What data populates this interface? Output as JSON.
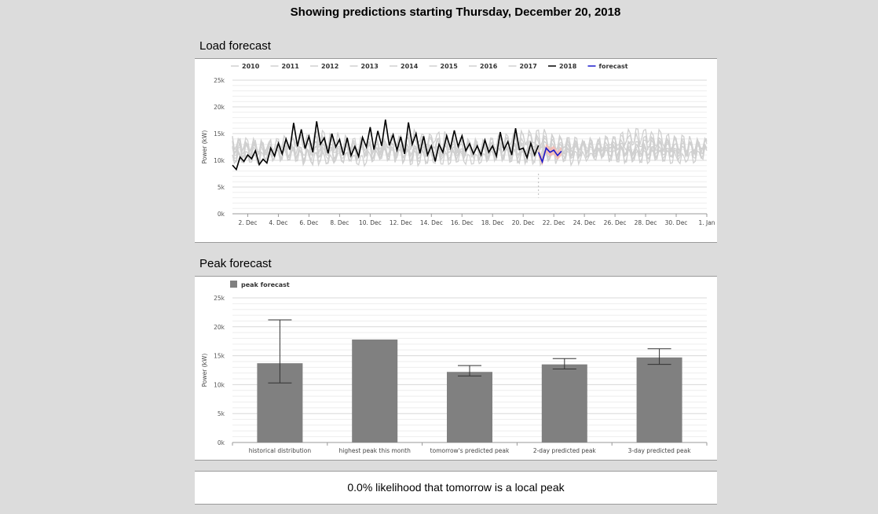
{
  "page": {
    "title": "Showing predictions starting Thursday, December 20, 2018",
    "likelihood_text": "0.0% likelihood that tomorrow is a local peak"
  },
  "load_section": {
    "title": "Load forecast"
  },
  "peak_section": {
    "title": "Peak forecast"
  },
  "chart_data": [
    {
      "type": "line",
      "ylabel": "Power (kW)",
      "xlabel": "",
      "ylim": [
        0,
        25000
      ],
      "yticks": [
        "0k",
        "5k",
        "10k",
        "15k",
        "20k",
        "25k"
      ],
      "xlim_days": [
        1,
        32
      ],
      "x_tick_labels": [
        "2. Dec",
        "4. Dec",
        "6. Dec",
        "8. Dec",
        "10. Dec",
        "12. Dec",
        "14. Dec",
        "16. Dec",
        "18. Dec",
        "20. Dec",
        "22. Dec",
        "24. Dec",
        "26. Dec",
        "28. Dec",
        "30. Dec",
        "1. Jan"
      ],
      "legend_position": "top",
      "grid": true,
      "colors": {
        "history": "#d0d0d0",
        "current": "#000000",
        "forecast": "#1a1acc",
        "band": "#f4b8b0"
      },
      "series": [
        {
          "name": "2010",
          "color": "#d0d0d0",
          "seed": 3,
          "base": 11000,
          "amp": 2200,
          "noise": 900,
          "trend": 400
        },
        {
          "name": "2011",
          "color": "#d0d0d0",
          "seed": 7,
          "base": 12000,
          "amp": 2600,
          "noise": 1000,
          "trend": 0
        },
        {
          "name": "2012",
          "color": "#d0d0d0",
          "seed": 11,
          "base": 12500,
          "amp": 2400,
          "noise": 1000,
          "trend": -300
        },
        {
          "name": "2013",
          "color": "#d0d0d0",
          "seed": 13,
          "base": 11500,
          "amp": 2800,
          "noise": 1100,
          "trend": 500
        },
        {
          "name": "2014",
          "color": "#d0d0d0",
          "seed": 17,
          "base": 13000,
          "amp": 2300,
          "noise": 900,
          "trend": 0
        },
        {
          "name": "2015",
          "color": "#d0d0d0",
          "seed": 19,
          "base": 11000,
          "amp": 2500,
          "noise": 1000,
          "trend": 800
        },
        {
          "name": "2016",
          "color": "#d0d0d0",
          "seed": 23,
          "base": 12500,
          "amp": 3200,
          "noise": 1300,
          "trend": 1000
        },
        {
          "name": "2017",
          "color": "#d0d0d0",
          "seed": 29,
          "base": 12000,
          "amp": 2700,
          "noise": 1000,
          "trend": 300
        },
        {
          "name": "2018",
          "color": "#000000",
          "points": [
            [
              1.0,
              9100
            ],
            [
              1.25,
              8300
            ],
            [
              1.5,
              10600
            ],
            [
              1.75,
              9800
            ],
            [
              2.0,
              11000
            ],
            [
              2.25,
              10300
            ],
            [
              2.5,
              11800
            ],
            [
              2.75,
              9200
            ],
            [
              3.0,
              10200
            ],
            [
              3.25,
              9500
            ],
            [
              3.5,
              12300
            ],
            [
              3.75,
              10800
            ],
            [
              4.0,
              13200
            ],
            [
              4.25,
              11200
            ],
            [
              4.5,
              14000
            ],
            [
              4.75,
              12000
            ],
            [
              5.0,
              17000
            ],
            [
              5.25,
              12600
            ],
            [
              5.5,
              15800
            ],
            [
              5.75,
              12200
            ],
            [
              6.0,
              14500
            ],
            [
              6.25,
              11500
            ],
            [
              6.5,
              17300
            ],
            [
              6.75,
              13000
            ],
            [
              7.0,
              14200
            ],
            [
              7.25,
              11300
            ],
            [
              7.5,
              15000
            ],
            [
              7.75,
              12500
            ],
            [
              8.0,
              13900
            ],
            [
              8.25,
              11000
            ],
            [
              8.5,
              14200
            ],
            [
              8.75,
              10900
            ],
            [
              9.0,
              12600
            ],
            [
              9.25,
              10700
            ],
            [
              9.5,
              14300
            ],
            [
              9.75,
              12500
            ],
            [
              10.0,
              16200
            ],
            [
              10.25,
              12000
            ],
            [
              10.5,
              15500
            ],
            [
              10.75,
              12700
            ],
            [
              11.0,
              17600
            ],
            [
              11.25,
              12800
            ],
            [
              11.5,
              14800
            ],
            [
              11.75,
              11900
            ],
            [
              12.0,
              14400
            ],
            [
              12.25,
              11200
            ],
            [
              12.5,
              17100
            ],
            [
              12.75,
              13000
            ],
            [
              13.0,
              15000
            ],
            [
              13.25,
              11300
            ],
            [
              13.5,
              14500
            ],
            [
              13.75,
              11000
            ],
            [
              14.0,
              12700
            ],
            [
              14.25,
              9800
            ],
            [
              14.5,
              13000
            ],
            [
              14.75,
              11500
            ],
            [
              15.0,
              14600
            ],
            [
              15.25,
              12300
            ],
            [
              15.5,
              15600
            ],
            [
              15.75,
              12600
            ],
            [
              16.0,
              14600
            ],
            [
              16.25,
              11800
            ],
            [
              16.5,
              13100
            ],
            [
              16.75,
              11200
            ],
            [
              17.0,
              12700
            ],
            [
              17.25,
              11000
            ],
            [
              17.5,
              13800
            ],
            [
              17.75,
              11500
            ],
            [
              18.0,
              12700
            ],
            [
              18.25,
              10800
            ],
            [
              18.5,
              15300
            ],
            [
              18.75,
              12000
            ],
            [
              19.0,
              13500
            ],
            [
              19.25,
              11000
            ],
            [
              19.5,
              16000
            ],
            [
              19.75,
              12000
            ],
            [
              20.0,
              12300
            ],
            [
              20.25,
              10500
            ],
            [
              20.5,
              13200
            ],
            [
              20.75,
              11000
            ],
            [
              21.0,
              12800
            ]
          ]
        },
        {
          "name": "forecast",
          "color": "#1a1acc",
          "points": [
            [
              21.0,
              11500
            ],
            [
              21.25,
              9700
            ],
            [
              21.5,
              12300
            ],
            [
              21.75,
              11500
            ],
            [
              22.0,
              11900
            ],
            [
              22.25,
              10900
            ],
            [
              22.5,
              11700
            ]
          ],
          "band_low": [
            10700,
            9000,
            11500,
            10700,
            11100,
            10100,
            10900
          ],
          "band_high": [
            12300,
            10400,
            13100,
            12300,
            12700,
            11700,
            12500
          ]
        }
      ]
    },
    {
      "type": "bar",
      "ylabel": "Power (kW)",
      "xlabel": "",
      "ylim": [
        0,
        25000
      ],
      "yticks": [
        "0k",
        "5k",
        "10k",
        "15k",
        "20k",
        "25k"
      ],
      "legend_position": "top-left",
      "grid": true,
      "series": [
        {
          "name": "peak forecast",
          "color": "#808080"
        }
      ],
      "categories": [
        "historical distribution",
        "highest peak this month",
        "tomorrow's predicted peak",
        "2-day predicted peak",
        "3-day predicted peak"
      ],
      "values": [
        13700,
        17800,
        12200,
        13500,
        14700
      ],
      "error_bars": [
        [
          10300,
          21200
        ],
        null,
        [
          11500,
          13300
        ],
        [
          12700,
          14500
        ],
        [
          13500,
          16200
        ]
      ]
    }
  ]
}
